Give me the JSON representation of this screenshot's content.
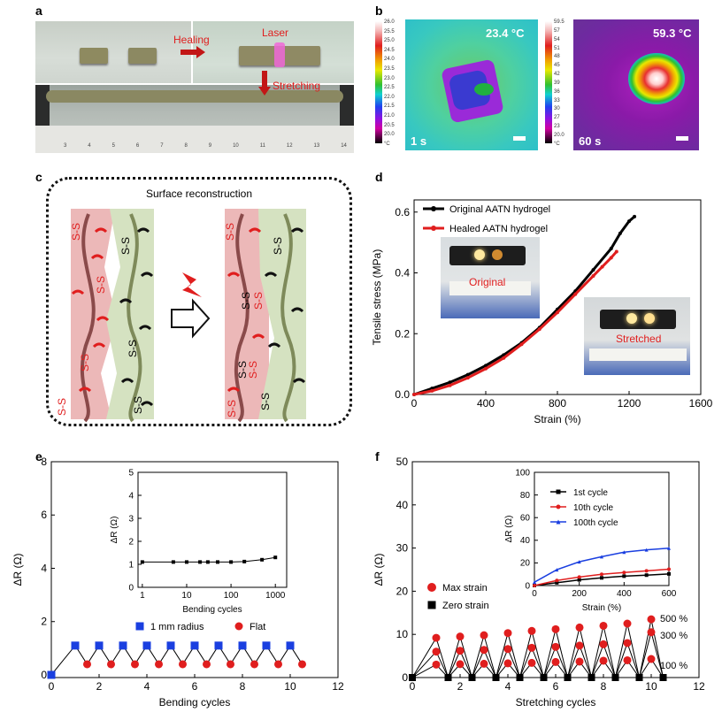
{
  "panels": {
    "a": {
      "label": "a",
      "healing_label": "Healing",
      "laser_label": "Laser",
      "stretching_label": "Stretching",
      "ruler_ticks": [
        "3",
        "4",
        "5",
        "6",
        "7",
        "8",
        "9",
        "10",
        "11",
        "12",
        "13",
        "14"
      ]
    },
    "b": {
      "label": "b",
      "left": {
        "temp": "23.4 °C",
        "time": "1 s",
        "scale": [
          "26.0",
          "25.5",
          "25.0",
          "24.5",
          "24.0",
          "23.5",
          "23.0",
          "22.5",
          "22.0",
          "21.5",
          "21.0",
          "20.5",
          "20.0",
          "°C"
        ]
      },
      "right": {
        "temp": "59.3 °C",
        "time": "60 s",
        "scale": [
          "59.5",
          "57",
          "54",
          "51",
          "48",
          "45",
          "42",
          "39",
          "36",
          "33",
          "30",
          "27",
          "23",
          "20.0",
          "°C"
        ]
      }
    },
    "c": {
      "label": "c",
      "title": "Surface reconstruction",
      "disulfide": "S-S"
    },
    "d": {
      "label": "d",
      "inset_original": "Original",
      "inset_stretched": "Stretched"
    },
    "e": {
      "label": "e"
    },
    "f": {
      "label": "f",
      "strain_labels": [
        "500 %",
        "300 %",
        "100 %"
      ]
    }
  },
  "chart_data": [
    {
      "id": "d",
      "type": "line",
      "xlabel": "Strain (%)",
      "ylabel": "Tensile stress (MPa)",
      "xlim": [
        0,
        1600
      ],
      "ylim": [
        0,
        0.6
      ],
      "xticks": [
        0,
        400,
        800,
        1200,
        1600
      ],
      "yticks": [
        0.0,
        0.2,
        0.4,
        0.6
      ],
      "series": [
        {
          "name": "Original AATN hydrogel",
          "color": "#000000",
          "x": [
            0,
            100,
            200,
            300,
            400,
            500,
            600,
            700,
            800,
            900,
            1000,
            1100,
            1150,
            1200,
            1230
          ],
          "y": [
            0,
            0.02,
            0.04,
            0.065,
            0.095,
            0.13,
            0.17,
            0.22,
            0.28,
            0.34,
            0.41,
            0.48,
            0.53,
            0.57,
            0.585
          ]
        },
        {
          "name": "Healed AATN hydrogel",
          "color": "#e01e1e",
          "x": [
            0,
            100,
            200,
            300,
            400,
            500,
            600,
            700,
            800,
            900,
            1000,
            1050,
            1100,
            1130
          ],
          "y": [
            0,
            0.012,
            0.03,
            0.055,
            0.085,
            0.12,
            0.165,
            0.215,
            0.27,
            0.33,
            0.39,
            0.42,
            0.45,
            0.47
          ]
        }
      ]
    },
    {
      "id": "e",
      "type": "line",
      "xlabel": "Bending cycles",
      "ylabel": "ΔR (Ω)",
      "xlim": [
        0,
        12
      ],
      "ylim": [
        0,
        8
      ],
      "xticks": [
        0,
        2,
        4,
        6,
        8,
        10,
        12
      ],
      "yticks": [
        0,
        2,
        4,
        6,
        8
      ],
      "series": [
        {
          "name": "1 mm radius",
          "color": "#1a3fe0",
          "marker": "square",
          "x": [
            0,
            1,
            2,
            3,
            4,
            5,
            6,
            7,
            8,
            9,
            10
          ],
          "y": [
            0,
            1.1,
            1.1,
            1.1,
            1.1,
            1.1,
            1.1,
            1.1,
            1.1,
            1.1,
            1.1
          ]
        },
        {
          "name": "Flat",
          "color": "#e01e1e",
          "marker": "circle",
          "x": [
            1.5,
            2.5,
            3.5,
            4.5,
            5.5,
            6.5,
            7.5,
            8.5,
            9.5,
            10.5
          ],
          "y": [
            0.4,
            0.4,
            0.4,
            0.4,
            0.4,
            0.4,
            0.4,
            0.4,
            0.4,
            0.4
          ]
        }
      ],
      "inset": {
        "xlabel": "Bending cycles",
        "ylabel": "ΔR (Ω)",
        "xscale": "log",
        "xticks": [
          1,
          10,
          100,
          1000
        ],
        "yticks": [
          0,
          1,
          2,
          3,
          4,
          5
        ],
        "ylim": [
          0,
          5
        ],
        "x": [
          1,
          5,
          10,
          20,
          30,
          50,
          100,
          200,
          500,
          1000
        ],
        "y": [
          1.1,
          1.1,
          1.1,
          1.1,
          1.1,
          1.1,
          1.1,
          1.12,
          1.2,
          1.3
        ]
      }
    },
    {
      "id": "f",
      "type": "scatter",
      "xlabel": "Stretching cycles",
      "ylabel": "ΔR (Ω)",
      "xlim": [
        0,
        12
      ],
      "ylim": [
        0,
        50
      ],
      "xticks": [
        0,
        2,
        4,
        6,
        8,
        10,
        12
      ],
      "yticks": [
        0,
        10,
        20,
        30,
        40,
        50
      ],
      "legend": [
        "Max strain",
        "Zero strain"
      ],
      "max_strain": {
        "x": [
          1,
          2,
          3,
          4,
          5,
          6,
          7,
          8,
          9,
          10
        ],
        "s500": [
          9.2,
          9.5,
          9.8,
          10.3,
          10.8,
          11.2,
          11.6,
          12.0,
          12.5,
          13.5
        ],
        "s300": [
          6.0,
          6.2,
          6.4,
          6.6,
          6.9,
          7.1,
          7.4,
          7.7,
          8.0,
          10.5
        ],
        "s100": [
          3.0,
          3.1,
          3.2,
          3.3,
          3.4,
          3.6,
          3.7,
          3.9,
          4.0,
          4.3
        ]
      },
      "zero_strain": {
        "x": [
          0,
          1.5,
          2.5,
          3.5,
          4.5,
          5.5,
          6.5,
          7.5,
          8.5,
          9.5,
          10.5
        ],
        "y": [
          0,
          0,
          0,
          0,
          0,
          0,
          0,
          0,
          0,
          0,
          0
        ]
      },
      "inset": {
        "xlabel": "Strain (%)",
        "ylabel": "ΔR (Ω)",
        "xlim": [
          0,
          600
        ],
        "ylim": [
          0,
          100
        ],
        "xticks": [
          0,
          200,
          400,
          600
        ],
        "yticks": [
          0,
          20,
          40,
          60,
          80,
          100
        ],
        "series": [
          {
            "name": "1st cycle",
            "color": "#000000",
            "marker": "square",
            "x": [
              0,
              100,
              200,
              300,
              400,
              500,
              600
            ],
            "y": [
              0,
              2.5,
              5,
              6.8,
              8.3,
              9.2,
              10.3
            ]
          },
          {
            "name": "10th cycle",
            "color": "#e01e1e",
            "marker": "circle",
            "x": [
              0,
              100,
              200,
              300,
              400,
              500,
              600
            ],
            "y": [
              0,
              4.5,
              7.5,
              10,
              11.5,
              13,
              14.5
            ]
          },
          {
            "name": "100th cycle",
            "color": "#1a3fe0",
            "marker": "triangle",
            "x": [
              0,
              100,
              200,
              300,
              400,
              500,
              600
            ],
            "y": [
              3,
              14,
              21,
              25.5,
              29.5,
              31.5,
              33
            ]
          }
        ]
      }
    }
  ]
}
